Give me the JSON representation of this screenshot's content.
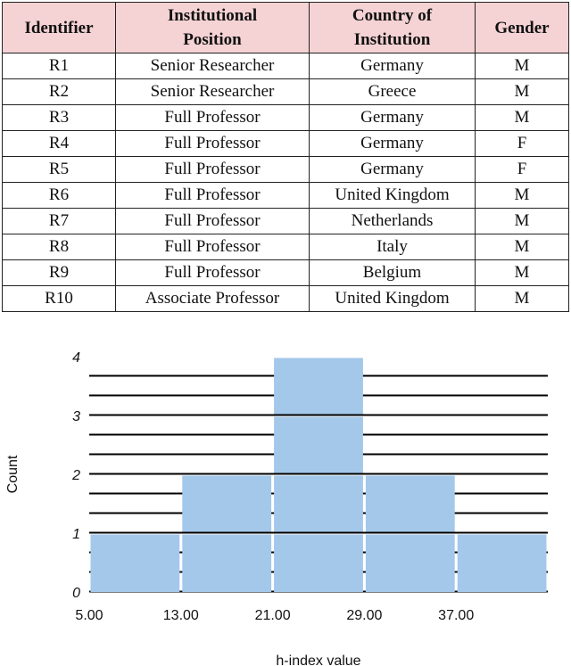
{
  "table": {
    "headers": [
      [
        "Identifier"
      ],
      [
        "Institutional",
        "Position"
      ],
      [
        "Country of",
        "Institution"
      ],
      [
        "Gender"
      ]
    ],
    "rows": [
      [
        "R1",
        "Senior Researcher",
        "Germany",
        "M"
      ],
      [
        "R2",
        "Senior Researcher",
        "Greece",
        "M"
      ],
      [
        "R3",
        "Full Professor",
        "Germany",
        "M"
      ],
      [
        "R4",
        "Full Professor",
        "Germany",
        "F"
      ],
      [
        "R5",
        "Full Professor",
        "Germany",
        "F"
      ],
      [
        "R6",
        "Full Professor",
        "United Kingdom",
        "M"
      ],
      [
        "R7",
        "Full Professor",
        "Netherlands",
        "M"
      ],
      [
        "R8",
        "Full Professor",
        "Italy",
        "M"
      ],
      [
        "R9",
        "Full Professor",
        "Belgium",
        "M"
      ],
      [
        "R10",
        "Associate Professor",
        "United Kingdom",
        "M"
      ]
    ],
    "header_bg": "#f5d2d4"
  },
  "chart_data": {
    "type": "bar",
    "title": "",
    "xlabel": "h-index value",
    "ylabel": "Count",
    "x_ticks": [
      "5.00",
      "13.00",
      "21.00",
      "29.00",
      "37.00"
    ],
    "y_ticks": [
      0,
      1,
      2,
      3,
      4
    ],
    "ylim": [
      0,
      4
    ],
    "bins": [
      {
        "start": 5,
        "end": 13,
        "count": 1
      },
      {
        "start": 13,
        "end": 21,
        "count": 2
      },
      {
        "start": 21,
        "end": 29,
        "count": 4
      },
      {
        "start": 29,
        "end": 37,
        "count": 2
      },
      {
        "start": 37,
        "end": 45,
        "count": 1
      }
    ],
    "bar_color": "#a4c8ea",
    "grid": true
  }
}
